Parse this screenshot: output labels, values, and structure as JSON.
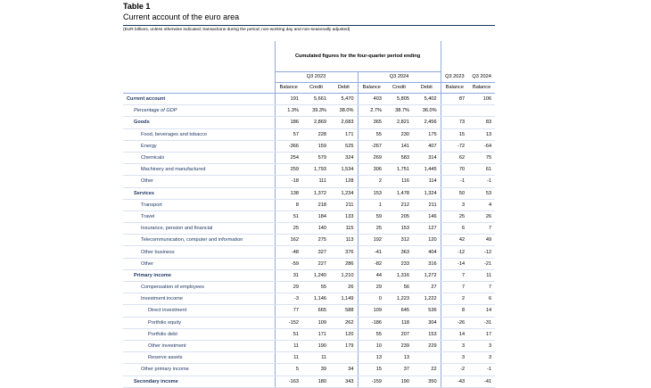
{
  "header": {
    "table_no": "Table 1",
    "title": "Current account of the euro area",
    "note": "(EUR billions, unless otherwise indicated; transactions during the period; non-working day and non-seasonally adjusted)"
  },
  "columns": {
    "cumulated_label": "Cumulated figures for the four-quarter period ending",
    "q2023": "Q3 2023",
    "q2024": "Q3 2024",
    "balance": "Balance",
    "credit": "Credit",
    "debit": "Debit"
  },
  "rows": [
    {
      "label": "Current account",
      "level": 0,
      "bold": true,
      "v": [
        "191",
        "5,661",
        "5,470",
        "403",
        "5,805",
        "5,402",
        "87",
        "106"
      ]
    },
    {
      "label": "Percentage of GDP",
      "level": 1,
      "italic": true,
      "v": [
        "1.3%",
        "39.3%",
        "38.0%",
        "2.7%",
        "38.7%",
        "36.0%",
        "",
        ""
      ]
    },
    {
      "label": "Goods",
      "level": 1,
      "bold": true,
      "v": [
        "186",
        "2,869",
        "2,683",
        "365",
        "2,821",
        "2,456",
        "73",
        "83"
      ]
    },
    {
      "label": "Food, beverages and tobacco",
      "level": 2,
      "v": [
        "57",
        "228",
        "171",
        "55",
        "230",
        "175",
        "15",
        "13"
      ]
    },
    {
      "label": "Energy",
      "level": 2,
      "v": [
        "-366",
        "159",
        "525",
        "-267",
        "141",
        "407",
        "-72",
        "-64"
      ]
    },
    {
      "label": "Chemicals",
      "level": 2,
      "v": [
        "254",
        "579",
        "324",
        "269",
        "583",
        "314",
        "62",
        "75"
      ]
    },
    {
      "label": "Machinery and manufactured",
      "level": 2,
      "v": [
        "259",
        "1,793",
        "1,534",
        "306",
        "1,751",
        "1,445",
        "70",
        "61"
      ]
    },
    {
      "label": "Other",
      "level": 2,
      "v": [
        "-18",
        "111",
        "128",
        "2",
        "116",
        "114",
        "-1",
        "-1"
      ]
    },
    {
      "label": "Services",
      "level": 1,
      "bold": true,
      "v": [
        "138",
        "1,372",
        "1,234",
        "153",
        "1,478",
        "1,324",
        "50",
        "53"
      ]
    },
    {
      "label": "Transport",
      "level": 2,
      "v": [
        "8",
        "218",
        "211",
        "1",
        "212",
        "211",
        "3",
        "4"
      ]
    },
    {
      "label": "Travel",
      "level": 2,
      "v": [
        "51",
        "184",
        "133",
        "59",
        "205",
        "146",
        "25",
        "26"
      ]
    },
    {
      "label": "Insurance, pension and financial",
      "level": 2,
      "v": [
        "25",
        "140",
        "115",
        "25",
        "153",
        "127",
        "6",
        "7"
      ]
    },
    {
      "label": "Telecommunication, computer and information",
      "level": 2,
      "v": [
        "162",
        "275",
        "113",
        "192",
        "312",
        "120",
        "42",
        "49"
      ]
    },
    {
      "label": "Other business",
      "level": 2,
      "v": [
        "-48",
        "327",
        "376",
        "-41",
        "363",
        "404",
        "-12",
        "-12"
      ]
    },
    {
      "label": "Other",
      "level": 2,
      "v": [
        "-59",
        "227",
        "286",
        "-82",
        "233",
        "316",
        "-14",
        "-21"
      ]
    },
    {
      "label": "Primary income",
      "level": 1,
      "bold": true,
      "v": [
        "31",
        "1,240",
        "1,210",
        "44",
        "1,316",
        "1,272",
        "7",
        "11"
      ]
    },
    {
      "label": "Compensation of employees",
      "level": 2,
      "v": [
        "29",
        "55",
        "26",
        "29",
        "56",
        "27",
        "7",
        "7"
      ]
    },
    {
      "label": "Investment income",
      "level": 2,
      "v": [
        "-3",
        "1,146",
        "1,149",
        "0",
        "1,223",
        "1,222",
        "2",
        "6"
      ]
    },
    {
      "label": "Direct investment",
      "level": 3,
      "v": [
        "77",
        "665",
        "588",
        "109",
        "645",
        "536",
        "8",
        "14"
      ]
    },
    {
      "label": "Portfolio equity",
      "level": 3,
      "v": [
        "-152",
        "109",
        "262",
        "-186",
        "118",
        "304",
        "-26",
        "-31"
      ]
    },
    {
      "label": "Portfolio debt",
      "level": 3,
      "v": [
        "51",
        "171",
        "120",
        "55",
        "207",
        "153",
        "14",
        "17"
      ]
    },
    {
      "label": "Other investment",
      "level": 3,
      "v": [
        "11",
        "190",
        "179",
        "10",
        "239",
        "229",
        "3",
        "3"
      ]
    },
    {
      "label": "Reserve assets",
      "level": 3,
      "v": [
        "11",
        "11",
        "",
        "13",
        "13",
        "",
        "3",
        "3"
      ]
    },
    {
      "label": "Other primary income",
      "level": 2,
      "v": [
        "5",
        "39",
        "34",
        "15",
        "37",
        "22",
        "-2",
        "-1"
      ]
    },
    {
      "label": "Secondary income",
      "level": 1,
      "bold": true,
      "v": [
        "-163",
        "180",
        "343",
        "-159",
        "190",
        "350",
        "-43",
        "-41"
      ]
    }
  ]
}
